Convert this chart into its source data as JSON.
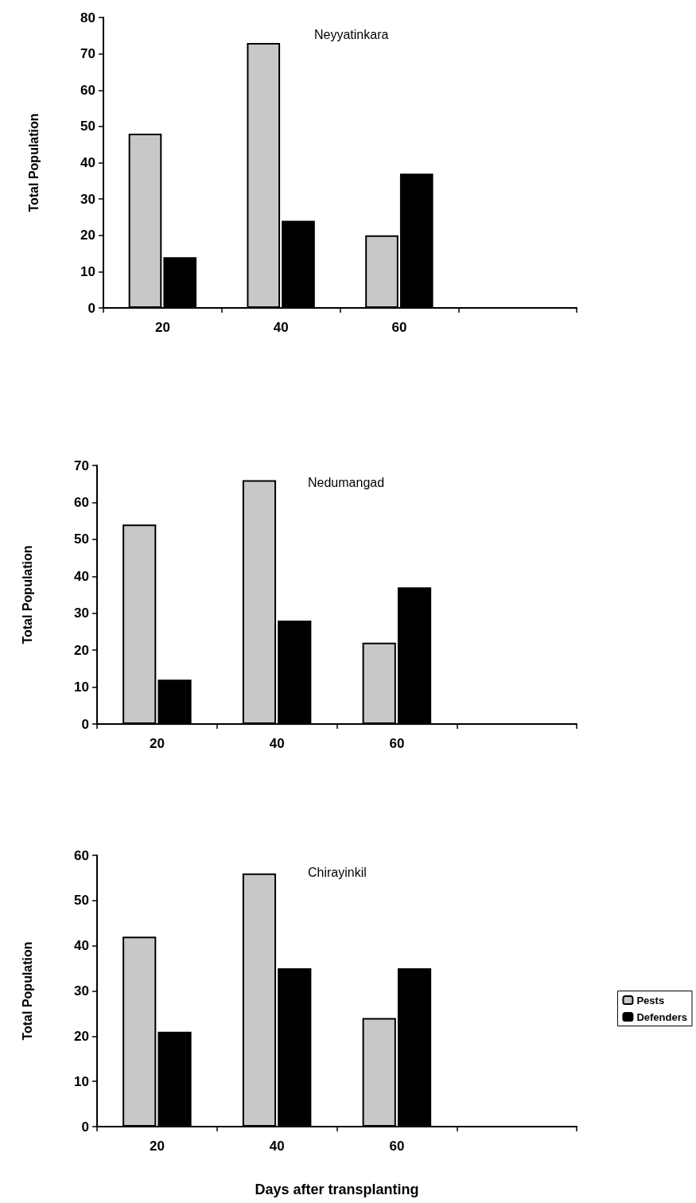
{
  "chart_data": [
    {
      "type": "bar",
      "title": "Neyyatinkara",
      "ylabel": "Total Population",
      "categories": [
        "20",
        "40",
        "60",
        null
      ],
      "series": [
        {
          "color": "#c8c8c8",
          "values": [
            48,
            73,
            20,
            null
          ]
        },
        {
          "color": "#000000",
          "values": [
            14,
            24,
            37,
            null
          ]
        }
      ],
      "ylim": [
        0,
        80
      ],
      "yticks": [
        0,
        10,
        20,
        30,
        40,
        50,
        60,
        70,
        80
      ],
      "grid": false,
      "legend": false
    },
    {
      "type": "bar",
      "title": "Nedumangad",
      "ylabel": "Total Population",
      "categories": [
        "20",
        "40",
        "60",
        null
      ],
      "series": [
        {
          "color": "#c8c8c8",
          "values": [
            54,
            66,
            22,
            null
          ]
        },
        {
          "color": "#000000",
          "values": [
            12,
            28,
            37,
            null
          ]
        }
      ],
      "ylim": [
        0,
        70
      ],
      "yticks": [
        0,
        10,
        20,
        30,
        40,
        50,
        60,
        70
      ],
      "grid": false,
      "legend": false
    },
    {
      "type": "bar",
      "title": "Chirayinkil",
      "ylabel": "Total Population",
      "xlabel": "Days after transplanting",
      "categories": [
        "20",
        "40",
        "60",
        null
      ],
      "series": [
        {
          "name": "Pests",
          "color": "#c8c8c8",
          "values": [
            42,
            56,
            24,
            null
          ]
        },
        {
          "name": "Defenders",
          "color": "#000000",
          "values": [
            21,
            35,
            35,
            null
          ]
        }
      ],
      "ylim": [
        0,
        60
      ],
      "yticks": [
        0,
        10,
        20,
        30,
        40,
        50,
        60
      ],
      "grid": false,
      "legend": "right"
    }
  ]
}
